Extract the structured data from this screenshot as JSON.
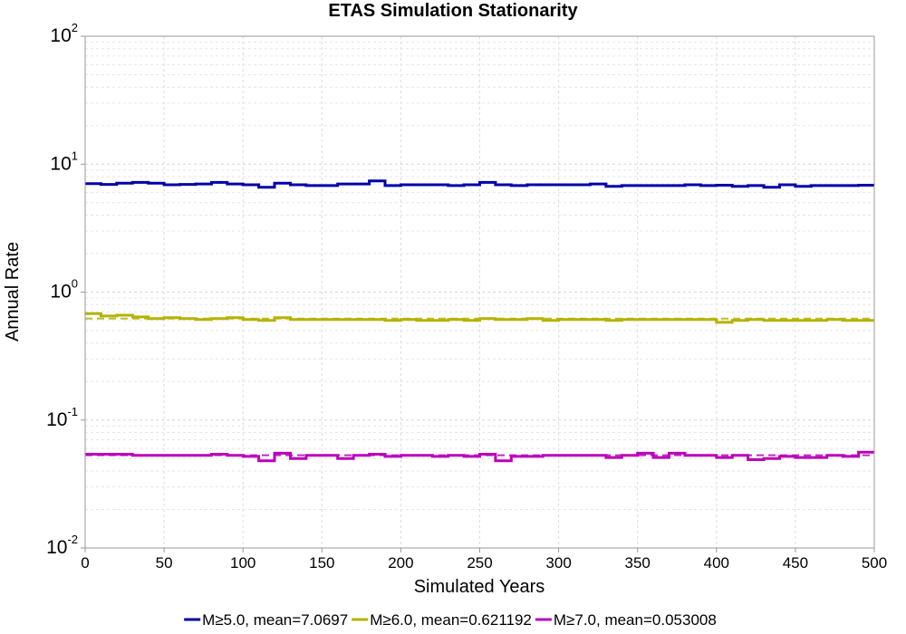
{
  "chart_data": {
    "type": "line",
    "title": "ETAS Simulation Stationarity",
    "xlabel": "Simulated Years",
    "ylabel": "Annual Rate",
    "xlim": [
      0,
      500
    ],
    "ylim": [
      0.01,
      100
    ],
    "yscale": "log",
    "grid": true,
    "legend_position": "bottom",
    "x_ticks": [
      "0",
      "50",
      "100",
      "150",
      "200",
      "250",
      "300",
      "350",
      "400",
      "450",
      "500"
    ],
    "y_ticks": [
      {
        "base": "10",
        "exp": "2",
        "value": 100
      },
      {
        "base": "10",
        "exp": "1",
        "value": 10
      },
      {
        "base": "10",
        "exp": "0",
        "value": 1
      },
      {
        "base": "10",
        "exp": "-1",
        "value": 0.1
      },
      {
        "base": "10",
        "exp": "-2",
        "value": 0.01
      }
    ],
    "bin_edges": [
      0,
      10,
      20,
      30,
      40,
      50,
      60,
      70,
      80,
      90,
      100,
      110,
      120,
      130,
      140,
      150,
      160,
      170,
      180,
      190,
      200,
      210,
      220,
      230,
      240,
      250,
      260,
      270,
      280,
      290,
      300,
      310,
      320,
      330,
      340,
      350,
      360,
      370,
      380,
      390,
      400,
      410,
      420,
      430,
      440,
      450,
      460,
      470,
      480,
      490,
      500
    ],
    "series": [
      {
        "name": "M≥5.0, mean=7.0697",
        "color": "#0000aa",
        "mean": 7.0697,
        "mean_line_visible": false,
        "values": [
          7.05,
          6.95,
          7.1,
          7.2,
          7.1,
          6.9,
          6.95,
          7.0,
          7.2,
          7.0,
          6.9,
          6.6,
          7.1,
          6.9,
          6.8,
          6.8,
          7.0,
          7.0,
          7.4,
          6.8,
          6.9,
          6.9,
          6.9,
          6.8,
          6.9,
          7.2,
          6.9,
          6.8,
          6.9,
          6.9,
          6.9,
          6.9,
          7.0,
          6.7,
          6.8,
          6.8,
          6.8,
          6.8,
          6.9,
          6.8,
          6.85,
          6.7,
          6.8,
          6.6,
          6.9,
          6.7,
          6.8,
          6.8,
          6.8,
          6.85
        ]
      },
      {
        "name": "M≥6.0, mean=0.621192",
        "color": "#b3b300",
        "mean": 0.621192,
        "mean_line_visible": true,
        "values": [
          0.68,
          0.65,
          0.66,
          0.64,
          0.62,
          0.63,
          0.62,
          0.61,
          0.62,
          0.63,
          0.61,
          0.6,
          0.63,
          0.61,
          0.61,
          0.61,
          0.61,
          0.61,
          0.61,
          0.6,
          0.61,
          0.6,
          0.6,
          0.61,
          0.6,
          0.62,
          0.61,
          0.61,
          0.62,
          0.6,
          0.61,
          0.61,
          0.61,
          0.6,
          0.61,
          0.61,
          0.61,
          0.61,
          0.61,
          0.61,
          0.58,
          0.6,
          0.61,
          0.6,
          0.6,
          0.6,
          0.6,
          0.61,
          0.6,
          0.6
        ]
      },
      {
        "name": "M≥7.0, mean=0.053008",
        "color": "#bb00bb",
        "mean": 0.053008,
        "mean_line_visible": true,
        "values": [
          0.054,
          0.054,
          0.054,
          0.053,
          0.053,
          0.053,
          0.053,
          0.053,
          0.054,
          0.053,
          0.052,
          0.048,
          0.055,
          0.05,
          0.053,
          0.053,
          0.05,
          0.053,
          0.054,
          0.052,
          0.053,
          0.053,
          0.052,
          0.053,
          0.052,
          0.054,
          0.048,
          0.052,
          0.052,
          0.053,
          0.053,
          0.053,
          0.053,
          0.051,
          0.053,
          0.055,
          0.051,
          0.055,
          0.053,
          0.053,
          0.051,
          0.053,
          0.049,
          0.05,
          0.052,
          0.051,
          0.051,
          0.053,
          0.052,
          0.056
        ]
      }
    ]
  }
}
